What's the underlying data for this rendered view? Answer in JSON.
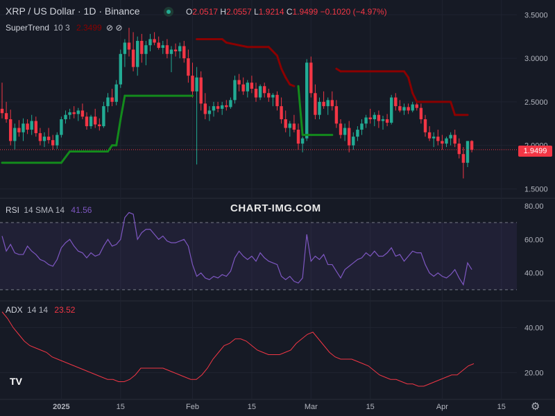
{
  "header": {
    "title": "XRP / US Dollar · 1D · Binance",
    "o_label": "O",
    "o_value": "2.0517",
    "h_label": "H",
    "h_value": "2.0557",
    "l_label": "L",
    "l_value": "1.9214",
    "c_label": "C",
    "c_value": "1.9499",
    "change": "−0.1020 (−4.97%)"
  },
  "supertrend": {
    "name": "SuperTrend",
    "params": "10 3",
    "value": "2.3499",
    "icons": [
      "visibility-off-icon",
      "visibility-off-icon"
    ]
  },
  "rsi": {
    "name": "RSI",
    "params": "14 SMA 14",
    "value": "41.56"
  },
  "adx": {
    "name": "ADX",
    "params": "14 14",
    "value": "23.52"
  },
  "watermark": "CHART-IMG.COM",
  "last_price_tag": "1.9499",
  "colors": {
    "bg": "#161a25",
    "up": "#22ab94",
    "down": "#f23645",
    "st_up": "#138b1c",
    "st_down": "#8b0000",
    "rsi": "#7e57c2",
    "adx": "#f23645"
  },
  "chart_data": {
    "type": "candlestick",
    "price_axis_ticks": [
      "3.5000",
      "3.0000",
      "2.5000",
      "2.0000",
      "1.5000"
    ],
    "price_ylim": [
      1.4,
      3.55
    ],
    "rsi_axis_ticks": [
      "80.00",
      "60.00",
      "40.00"
    ],
    "rsi_ylim": [
      25,
      82
    ],
    "rsi_bands": [
      70,
      30
    ],
    "adx_axis_ticks": [
      "40.00",
      "20.00"
    ],
    "adx_ylim": [
      10,
      50
    ],
    "x_ticks": [
      {
        "label": "2025",
        "index": 14,
        "bold": true
      },
      {
        "label": "15",
        "index": 28
      },
      {
        "label": "Feb",
        "index": 45
      },
      {
        "label": "15",
        "index": 59
      },
      {
        "label": "Mar",
        "index": 73
      },
      {
        "label": "15",
        "index": 87
      },
      {
        "label": "Apr",
        "index": 104
      },
      {
        "label": "15",
        "index": 118
      }
    ],
    "candles": [
      [
        2.42,
        2.72,
        2.31,
        2.37
      ],
      [
        2.37,
        2.5,
        2.26,
        2.3
      ],
      [
        2.3,
        2.41,
        2.0,
        2.05
      ],
      [
        2.05,
        2.25,
        1.95,
        2.2
      ],
      [
        2.2,
        2.29,
        2.1,
        2.15
      ],
      [
        2.15,
        2.31,
        2.05,
        2.25
      ],
      [
        2.25,
        2.3,
        2.13,
        2.18
      ],
      [
        2.18,
        2.35,
        2.12,
        2.28
      ],
      [
        2.28,
        2.33,
        2.1,
        2.14
      ],
      [
        2.14,
        2.2,
        2.0,
        2.05
      ],
      [
        2.05,
        2.15,
        1.98,
        2.1
      ],
      [
        2.1,
        2.2,
        2.02,
        2.06
      ],
      [
        2.06,
        2.12,
        1.95,
        2.0
      ],
      [
        2.0,
        2.15,
        1.96,
        2.12
      ],
      [
        2.12,
        2.33,
        2.09,
        2.3
      ],
      [
        2.3,
        2.4,
        2.25,
        2.35
      ],
      [
        2.35,
        2.42,
        2.3,
        2.38
      ],
      [
        2.38,
        2.45,
        2.31,
        2.36
      ],
      [
        2.36,
        2.43,
        2.28,
        2.4
      ],
      [
        2.4,
        2.48,
        2.3,
        2.33
      ],
      [
        2.33,
        2.38,
        2.18,
        2.22
      ],
      [
        2.22,
        2.35,
        2.19,
        2.33
      ],
      [
        2.33,
        2.42,
        2.2,
        2.24
      ],
      [
        2.24,
        2.31,
        2.17,
        2.22
      ],
      [
        2.22,
        2.5,
        2.2,
        2.45
      ],
      [
        2.45,
        2.6,
        2.38,
        2.55
      ],
      [
        2.55,
        2.65,
        2.45,
        2.5
      ],
      [
        2.5,
        2.75,
        2.46,
        2.7
      ],
      [
        2.7,
        3.1,
        2.66,
        3.05
      ],
      [
        3.05,
        3.22,
        2.9,
        3.18
      ],
      [
        3.18,
        3.35,
        3.02,
        3.1
      ],
      [
        3.1,
        3.3,
        2.85,
        2.9
      ],
      [
        2.9,
        3.25,
        2.8,
        3.2
      ],
      [
        3.2,
        3.28,
        2.95,
        3.05
      ],
      [
        3.05,
        3.2,
        2.92,
        3.15
      ],
      [
        3.15,
        3.28,
        3.08,
        3.22
      ],
      [
        3.22,
        3.3,
        3.15,
        3.18
      ],
      [
        3.18,
        3.25,
        3.1,
        3.12
      ],
      [
        3.12,
        3.2,
        3.05,
        3.15
      ],
      [
        3.15,
        3.22,
        3.0,
        3.05
      ],
      [
        3.05,
        3.14,
        2.84,
        3.1
      ],
      [
        3.1,
        3.17,
        3.02,
        3.08
      ],
      [
        3.08,
        3.18,
        3.0,
        3.14
      ],
      [
        3.14,
        3.2,
        2.95,
        3.0
      ],
      [
        3.0,
        3.1,
        2.72,
        2.8
      ],
      [
        2.8,
        2.95,
        2.55,
        2.62
      ],
      [
        2.62,
        2.9,
        1.78,
        2.78
      ],
      [
        2.78,
        2.85,
        2.4,
        2.48
      ],
      [
        2.48,
        2.6,
        2.3,
        2.36
      ],
      [
        2.36,
        2.45,
        2.28,
        2.4
      ],
      [
        2.4,
        2.5,
        2.33,
        2.45
      ],
      [
        2.45,
        2.5,
        2.38,
        2.42
      ],
      [
        2.42,
        2.5,
        2.35,
        2.46
      ],
      [
        2.46,
        2.52,
        2.4,
        2.44
      ],
      [
        2.44,
        2.55,
        2.42,
        2.52
      ],
      [
        2.52,
        2.8,
        2.48,
        2.75
      ],
      [
        2.75,
        2.82,
        2.62,
        2.7
      ],
      [
        2.7,
        2.78,
        2.58,
        2.62
      ],
      [
        2.62,
        2.75,
        2.55,
        2.72
      ],
      [
        2.72,
        2.8,
        2.6,
        2.65
      ],
      [
        2.65,
        2.72,
        2.5,
        2.55
      ],
      [
        2.55,
        2.7,
        2.52,
        2.68
      ],
      [
        2.68,
        2.72,
        2.55,
        2.6
      ],
      [
        2.6,
        2.65,
        2.5,
        2.55
      ],
      [
        2.55,
        2.6,
        2.45,
        2.58
      ],
      [
        2.58,
        2.62,
        2.4,
        2.45
      ],
      [
        2.45,
        2.55,
        2.25,
        2.3
      ],
      [
        2.3,
        2.4,
        2.15,
        2.2
      ],
      [
        2.2,
        2.28,
        2.1,
        2.25
      ],
      [
        2.25,
        2.35,
        2.15,
        2.18
      ],
      [
        2.18,
        2.25,
        1.95,
        2.02
      ],
      [
        2.02,
        2.1,
        1.92,
        2.08
      ],
      [
        2.08,
        2.99,
        2.05,
        2.95
      ],
      [
        2.95,
        3.02,
        2.55,
        2.6
      ],
      [
        2.6,
        2.7,
        2.3,
        2.35
      ],
      [
        2.35,
        2.55,
        2.3,
        2.5
      ],
      [
        2.5,
        2.62,
        2.42,
        2.45
      ],
      [
        2.45,
        2.55,
        2.35,
        2.52
      ],
      [
        2.52,
        2.62,
        2.4,
        2.45
      ],
      [
        2.45,
        2.52,
        2.2,
        2.25
      ],
      [
        2.25,
        2.3,
        2.08,
        2.12
      ],
      [
        2.12,
        2.25,
        2.05,
        2.2
      ],
      [
        2.2,
        2.28,
        1.92,
        2.0
      ],
      [
        2.0,
        2.15,
        1.95,
        2.1
      ],
      [
        2.1,
        2.22,
        2.05,
        2.18
      ],
      [
        2.18,
        2.3,
        2.12,
        2.25
      ],
      [
        2.25,
        2.35,
        2.2,
        2.32
      ],
      [
        2.32,
        2.42,
        2.25,
        2.3
      ],
      [
        2.3,
        2.38,
        2.22,
        2.35
      ],
      [
        2.35,
        2.4,
        2.2,
        2.28
      ],
      [
        2.28,
        2.34,
        2.18,
        2.3
      ],
      [
        2.3,
        2.36,
        2.22,
        2.26
      ],
      [
        2.26,
        2.58,
        2.24,
        2.55
      ],
      [
        2.55,
        2.6,
        2.4,
        2.45
      ],
      [
        2.45,
        2.52,
        2.38,
        2.4
      ],
      [
        2.4,
        2.48,
        2.35,
        2.44
      ],
      [
        2.44,
        2.48,
        2.36,
        2.4
      ],
      [
        2.4,
        2.5,
        2.38,
        2.47
      ],
      [
        2.47,
        2.52,
        2.4,
        2.43
      ],
      [
        2.43,
        2.48,
        2.25,
        2.3
      ],
      [
        2.3,
        2.35,
        2.1,
        2.15
      ],
      [
        2.15,
        2.22,
        2.05,
        2.08
      ],
      [
        2.08,
        2.15,
        1.98,
        2.1
      ],
      [
        2.1,
        2.18,
        2.0,
        2.05
      ],
      [
        2.05,
        2.12,
        1.95,
        2.02
      ],
      [
        2.02,
        2.1,
        1.98,
        2.08
      ],
      [
        2.08,
        2.15,
        2.0,
        2.12
      ],
      [
        2.12,
        2.18,
        1.98,
        2.02
      ],
      [
        2.02,
        2.08,
        1.85,
        1.9
      ],
      [
        1.9,
        1.98,
        1.62,
        1.8
      ],
      [
        1.8,
        2.05,
        1.75,
        2.05
      ],
      [
        2.05,
        2.06,
        1.92,
        1.95
      ]
    ],
    "supertrend_values": [
      [
        0,
        1.8,
        "up"
      ],
      [
        14,
        1.8,
        "up"
      ],
      [
        16,
        1.93,
        "up"
      ],
      [
        24,
        1.93,
        "up"
      ],
      [
        25,
        1.93,
        "up"
      ],
      [
        26,
        2.0,
        "up"
      ],
      [
        27,
        2.0,
        "up"
      ],
      [
        28,
        2.3,
        "up"
      ],
      [
        29,
        2.57,
        "up"
      ],
      [
        45,
        2.57,
        "up"
      ],
      [
        46,
        3.22,
        "down"
      ],
      [
        52,
        3.22,
        "down"
      ],
      [
        53,
        3.18,
        "down"
      ],
      [
        58,
        3.13,
        "down"
      ],
      [
        63,
        3.13,
        "down"
      ],
      [
        65,
        3.03,
        "down"
      ],
      [
        66,
        2.88,
        "down"
      ],
      [
        67,
        2.78,
        "down"
      ],
      [
        68,
        2.7,
        "down"
      ],
      [
        69,
        2.68,
        "down"
      ],
      [
        70,
        2.68,
        "up"
      ],
      [
        71,
        2.12,
        "up"
      ],
      [
        78,
        2.12,
        "up"
      ],
      [
        79,
        2.88,
        "down"
      ],
      [
        80,
        2.85,
        "down"
      ],
      [
        95,
        2.85,
        "down"
      ],
      [
        96,
        2.78,
        "down"
      ],
      [
        97,
        2.6,
        "down"
      ],
      [
        98,
        2.5,
        "down"
      ],
      [
        106,
        2.5,
        "down"
      ],
      [
        107,
        2.35,
        "down"
      ],
      [
        110,
        2.35,
        "down"
      ]
    ],
    "rsi_values": [
      62,
      53,
      57,
      52,
      51,
      51,
      56,
      53,
      51,
      48,
      47,
      45,
      44,
      48,
      55,
      58,
      60,
      56,
      53,
      52,
      49,
      52,
      50,
      51,
      56,
      60,
      56,
      57,
      60,
      73,
      76,
      75,
      60,
      64,
      66,
      66,
      63,
      60,
      62,
      59,
      58,
      58,
      59,
      60,
      56,
      45,
      38,
      40,
      37,
      36,
      38,
      37,
      39,
      38,
      41,
      49,
      53,
      50,
      48,
      50,
      47,
      52,
      49,
      47,
      46,
      45,
      38,
      36,
      38,
      35,
      34,
      37,
      63,
      47,
      50,
      48,
      51,
      45,
      45,
      41,
      37,
      42,
      44,
      46,
      48,
      49,
      52,
      50,
      53,
      50,
      50,
      52,
      55,
      50,
      51,
      47,
      50,
      53,
      52,
      52,
      45,
      40,
      38,
      40,
      38,
      37,
      39,
      42,
      37,
      33,
      46,
      42
    ],
    "adx_values": [
      47,
      44,
      40,
      37,
      34,
      32,
      31,
      30,
      29,
      27,
      26,
      25,
      24,
      23,
      22,
      21,
      20,
      19,
      18,
      17,
      17,
      16,
      16,
      17,
      19,
      22,
      22,
      22,
      22,
      22,
      21,
      20,
      19,
      18,
      17,
      17,
      19,
      22,
      26,
      29,
      32,
      33,
      35,
      35,
      34,
      32,
      30,
      29,
      28,
      28,
      28,
      29,
      30,
      33,
      35,
      37,
      38,
      35,
      32,
      29,
      27,
      26,
      26,
      26,
      25,
      24,
      23,
      21,
      19,
      18,
      17,
      17,
      16,
      15,
      15,
      14,
      14,
      15,
      16,
      17,
      18,
      19,
      19,
      21,
      23,
      24
    ]
  }
}
